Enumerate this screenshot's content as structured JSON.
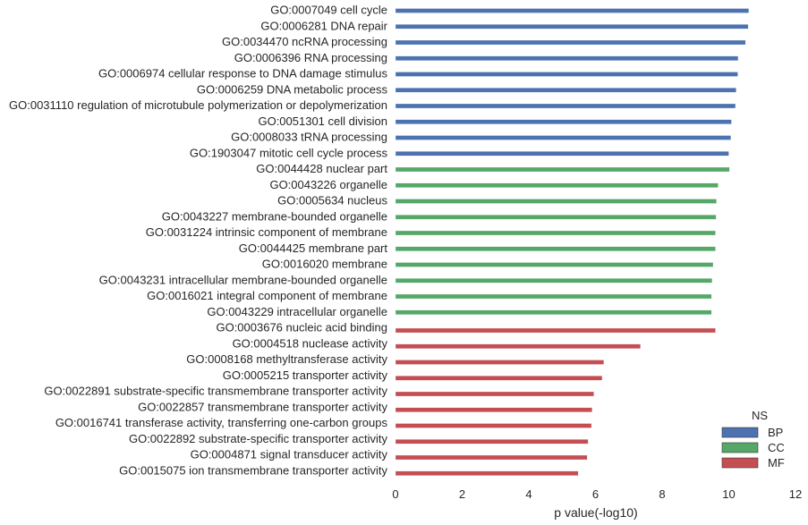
{
  "chart_data": {
    "type": "bar",
    "orientation": "horizontal",
    "xlabel": "p value(-log10)",
    "xlim": [
      0,
      12
    ],
    "xticks": [
      0,
      2,
      4,
      6,
      8,
      10,
      12
    ],
    "grid": false,
    "legend": {
      "title": "NS",
      "position": "bottom-right",
      "entries": [
        {
          "name": "BP",
          "color": "#4c72b0"
        },
        {
          "name": "CC",
          "color": "#55a868"
        },
        {
          "name": "MF",
          "color": "#c44e52"
        }
      ]
    },
    "bars": [
      {
        "label": "GO:0007049 cell cycle",
        "value": 10.6,
        "ns": "BP"
      },
      {
        "label": "GO:0006281 DNA repair",
        "value": 10.58,
        "ns": "BP"
      },
      {
        "label": "GO:0034470 ncRNA processing",
        "value": 10.5,
        "ns": "BP"
      },
      {
        "label": "GO:0006396 RNA processing",
        "value": 10.28,
        "ns": "BP"
      },
      {
        "label": "GO:0006974 cellular response to DNA damage stimulus",
        "value": 10.27,
        "ns": "BP"
      },
      {
        "label": "GO:0006259 DNA metabolic process",
        "value": 10.22,
        "ns": "BP"
      },
      {
        "label": "GO:0031110 regulation of microtubule polymerization or depolymerization",
        "value": 10.2,
        "ns": "BP"
      },
      {
        "label": "GO:0051301 cell division",
        "value": 10.08,
        "ns": "BP"
      },
      {
        "label": "GO:0008033 tRNA processing",
        "value": 10.06,
        "ns": "BP"
      },
      {
        "label": "GO:1903047 mitotic cell cycle process",
        "value": 10.0,
        "ns": "BP"
      },
      {
        "label": "GO:0044428 nuclear part",
        "value": 10.02,
        "ns": "CC"
      },
      {
        "label": "GO:0043226 organelle",
        "value": 9.68,
        "ns": "CC"
      },
      {
        "label": "GO:0005634 nucleus",
        "value": 9.63,
        "ns": "CC"
      },
      {
        "label": "GO:0043227 membrane-bounded organelle",
        "value": 9.62,
        "ns": "CC"
      },
      {
        "label": "GO:0031224 intrinsic component of membrane",
        "value": 9.6,
        "ns": "CC"
      },
      {
        "label": "GO:0044425 membrane part",
        "value": 9.6,
        "ns": "CC"
      },
      {
        "label": "GO:0016020 membrane",
        "value": 9.53,
        "ns": "CC"
      },
      {
        "label": "GO:0043231 intracellular membrane-bounded organelle",
        "value": 9.5,
        "ns": "CC"
      },
      {
        "label": "GO:0016021 integral component of membrane",
        "value": 9.48,
        "ns": "CC"
      },
      {
        "label": "GO:0043229 intracellular organelle",
        "value": 9.48,
        "ns": "CC"
      },
      {
        "label": "GO:0003676 nucleic acid binding",
        "value": 9.6,
        "ns": "MF"
      },
      {
        "label": "GO:0004518 nuclease activity",
        "value": 7.35,
        "ns": "MF"
      },
      {
        "label": "GO:0008168 methyltransferase activity",
        "value": 6.25,
        "ns": "MF"
      },
      {
        "label": "GO:0005215 transporter activity",
        "value": 6.2,
        "ns": "MF"
      },
      {
        "label": "GO:0022891 substrate-specific transmembrane transporter activity",
        "value": 5.95,
        "ns": "MF"
      },
      {
        "label": "GO:0022857 transmembrane transporter activity",
        "value": 5.9,
        "ns": "MF"
      },
      {
        "label": "GO:0016741 transferase activity, transferring one-carbon groups",
        "value": 5.88,
        "ns": "MF"
      },
      {
        "label": "GO:0022892 substrate-specific transporter activity",
        "value": 5.78,
        "ns": "MF"
      },
      {
        "label": "GO:0004871 signal transducer activity",
        "value": 5.75,
        "ns": "MF"
      },
      {
        "label": "GO:0015075 ion transmembrane transporter activity",
        "value": 5.48,
        "ns": "MF"
      }
    ]
  }
}
